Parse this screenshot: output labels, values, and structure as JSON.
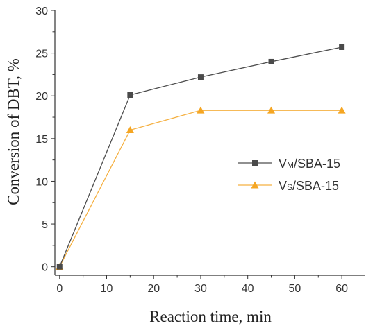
{
  "chart_data": {
    "type": "line",
    "title": "",
    "xlabel": "Reaction time, min",
    "ylabel": "Conversion of DBT, %",
    "xlim": [
      -1,
      65
    ],
    "ylim": [
      -1,
      30
    ],
    "xticks": [
      0,
      10,
      20,
      30,
      40,
      50,
      60
    ],
    "yticks": [
      0,
      5,
      10,
      15,
      20,
      25,
      30
    ],
    "grid": false,
    "legend_position": "center-right",
    "series": [
      {
        "name_main": "V",
        "name_sub": "M",
        "name_rest": "/SBA-15",
        "marker": "square",
        "line_color": "#4d4d4d",
        "marker_color": "#4a4a4a",
        "x": [
          0,
          15,
          30,
          45,
          60
        ],
        "y": [
          0,
          20.1,
          22.2,
          24.0,
          25.7
        ]
      },
      {
        "name_main": "V",
        "name_sub": "S",
        "name_rest": "/SBA-15",
        "marker": "triangle",
        "line_color": "#f5b041",
        "marker_color": "#f5a623",
        "x": [
          0,
          15,
          30,
          45,
          60
        ],
        "y": [
          0,
          16.0,
          18.3,
          18.3,
          18.3
        ]
      }
    ]
  }
}
